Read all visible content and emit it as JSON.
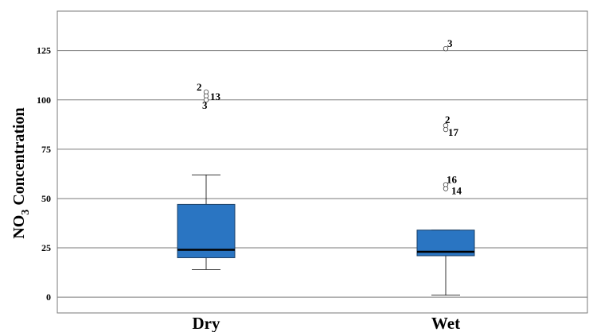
{
  "chart_data": {
    "type": "boxplot",
    "ylabel_main": "NO",
    "ylabel_sub": "3",
    "ylabel_rest": " Concentration",
    "ylim": [
      -8,
      145
    ],
    "yticks": [
      0,
      25,
      50,
      75,
      100,
      125
    ],
    "grid": true,
    "box_color": "#2a75c2",
    "median_color": "#000000",
    "categories": [
      "Dry",
      "Wet"
    ],
    "boxes": [
      {
        "category": "Dry",
        "min": 14,
        "q1": 20,
        "median": 24,
        "q3": 47,
        "max": 62,
        "outliers": [
          {
            "value": 104,
            "label": "2"
          },
          {
            "value": 102,
            "label": "13"
          },
          {
            "value": 100,
            "label": "3"
          }
        ]
      },
      {
        "category": "Wet",
        "min": 1,
        "q1": 21,
        "median": 23,
        "q3": 34,
        "max": 34,
        "outliers": [
          {
            "value": 126,
            "label": "3"
          },
          {
            "value": 87,
            "label": "2"
          },
          {
            "value": 85,
            "label": "17"
          },
          {
            "value": 57,
            "label": "16"
          },
          {
            "value": 55,
            "label": "14"
          }
        ]
      }
    ]
  }
}
